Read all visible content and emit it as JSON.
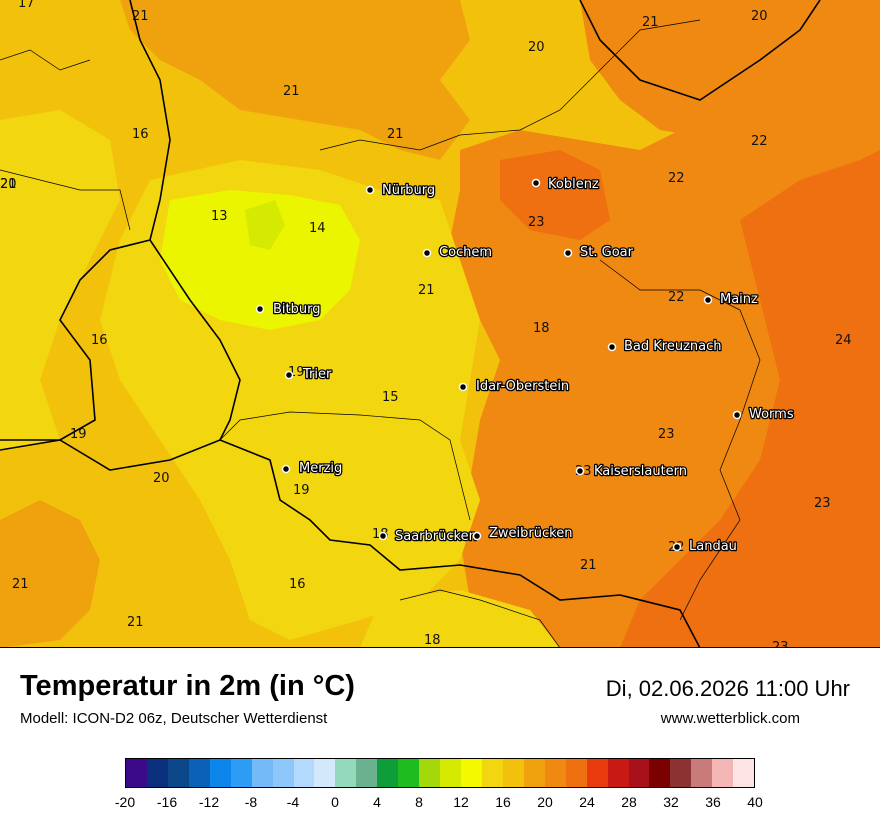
{
  "header": {
    "title": "Temperatur in 2m (in °C)",
    "subtitle": "Modell: ICON-D2 06z, Deutscher Wetterdienst",
    "datetime": "Di, 02.06.2026 11:00 Uhr",
    "website": "www.wetterblick.com"
  },
  "colors": {
    "lemon": "#ecf500",
    "yellow": "#f2d60f",
    "gold": "#f2c10c",
    "amber": "#f0a20e",
    "orange": "#ef8912",
    "deep_orange": "#ef7010",
    "border": "#000000"
  },
  "cities": [
    {
      "name": "Nürburg"
    },
    {
      "name": "Koblenz"
    },
    {
      "name": "Cochem"
    },
    {
      "name": "St. Goar"
    },
    {
      "name": "Bitburg"
    },
    {
      "name": "Mainz"
    },
    {
      "name": "Bad Kreuznach"
    },
    {
      "name": "Trier"
    },
    {
      "name": "Idar-Oberstein"
    },
    {
      "name": "Worms"
    },
    {
      "name": "Merzig"
    },
    {
      "name": "Kaiserslautern"
    },
    {
      "name": "Saarbrücken"
    },
    {
      "name": "Zweibrücken"
    },
    {
      "name": "Landau"
    }
  ],
  "map_values": [
    "17",
    "21",
    "21",
    "20",
    "20",
    "21",
    "21",
    "16",
    "21",
    "22",
    "20",
    "22",
    "13",
    "14",
    "23",
    "21",
    "22",
    "18",
    "16",
    "24",
    "19",
    "15",
    "19",
    "23",
    "23",
    "20",
    "19",
    "23",
    "18",
    "22",
    "16",
    "21",
    "21",
    "21",
    "18",
    "23"
  ],
  "legend": {
    "colors": [
      "#3b0a8a",
      "#0a2f7d",
      "#0b4688",
      "#0a61b6",
      "#0c86ea",
      "#2c9cf4",
      "#74baf8",
      "#8ec8fb",
      "#b3d9fc",
      "#d4e8fb",
      "#93d9bb",
      "#6ab28f",
      "#0f9d3a",
      "#1fbc20",
      "#a3d80a",
      "#d5ea00",
      "#f5f900",
      "#f2d60f",
      "#f2c10c",
      "#f0a20e",
      "#ef8912",
      "#ef7010",
      "#e83a0c",
      "#c81a12",
      "#a8101a",
      "#7b0000",
      "#8c3232",
      "#c97a7a",
      "#f4b5b5",
      "#fde4e4"
    ],
    "ticks": [
      "-20",
      "-16",
      "-12",
      "-8",
      "-4",
      "0",
      "4",
      "8",
      "12",
      "16",
      "20",
      "24",
      "28",
      "32",
      "36",
      "40"
    ]
  }
}
